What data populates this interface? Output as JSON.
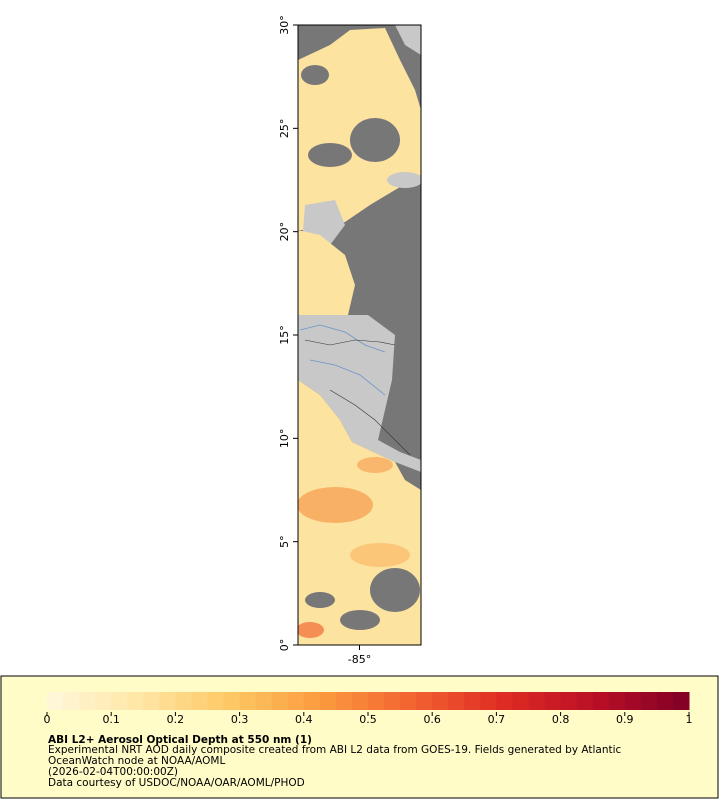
{
  "map": {
    "latlim": [
      0,
      30
    ],
    "lat_ticks": [
      {
        "value": 0,
        "label": "0°"
      },
      {
        "value": 5,
        "label": "5°"
      },
      {
        "value": 10,
        "label": "10°"
      },
      {
        "value": 15,
        "label": "15°"
      },
      {
        "value": 20,
        "label": "20°"
      },
      {
        "value": 25,
        "label": "25°"
      },
      {
        "value": 30,
        "label": "30°"
      }
    ],
    "lonlim": [
      -88,
      -82
    ],
    "lon_ticks": [
      {
        "value": -85,
        "label": "-85°"
      }
    ]
  },
  "colorbar": {
    "lim": [
      0,
      1
    ],
    "ticks": [
      0,
      0.1,
      0.2,
      0.3,
      0.4,
      0.5,
      0.6,
      0.7,
      0.8,
      0.9,
      1
    ],
    "colors": [
      "#fff7dc",
      "#ffe6a6",
      "#fdc863",
      "#fb9a3e",
      "#f26230",
      "#de2a23",
      "#b90f26",
      "#800026"
    ]
  },
  "caption": {
    "title": "ABI L2+ Aerosol Optical Depth at 550 nm (1)",
    "lines": [
      "Experimental NRT AOD daily composite created from ABI L2 data from GOES-19. Fields generated by Atlantic",
      "OceanWatch node at NOAA/AOML",
      "(2026-02-04T00:00:00Z)",
      "Data courtesy of USDOC/NOAA/OAR/AOML/PHOD"
    ]
  }
}
